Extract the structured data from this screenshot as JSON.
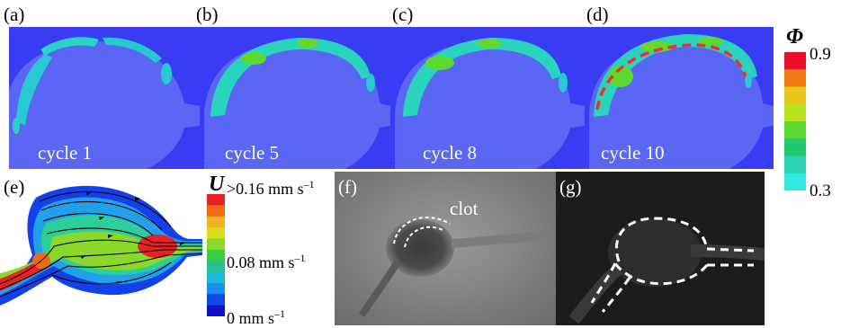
{
  "panels": {
    "a": {
      "label": "(a)",
      "cycle": "cycle 1"
    },
    "b": {
      "label": "(b)",
      "cycle": "cycle 5"
    },
    "c": {
      "label": "(c)",
      "cycle": "cycle 8"
    },
    "d": {
      "label": "(d)",
      "cycle": "cycle 10"
    },
    "e": {
      "label": "(e)"
    },
    "f": {
      "label": "(f)",
      "annotation": "clot"
    },
    "g": {
      "label": "(g)"
    }
  },
  "phi_colorbar": {
    "symbol": "Φ",
    "max": "0.9",
    "min": "0.3",
    "colors": [
      "#e8102a",
      "#f27a16",
      "#e8c51a",
      "#b6e11c",
      "#5cd930",
      "#22c76e",
      "#2bd3b2",
      "#33e8e0"
    ]
  },
  "u_colorbar": {
    "symbol": "U",
    "max_prefix": ">0.16 mm s",
    "max_exp": "–1",
    "mid_prefix": "0.08 mm s",
    "mid_exp": "–1",
    "min_prefix": "0 mm s",
    "min_exp": "–1",
    "colors": [
      "#e82222",
      "#f06a16",
      "#f0b420",
      "#d6e01a",
      "#8bd82a",
      "#3fcc3a",
      "#27c090",
      "#22b8d8",
      "#1a8ef0",
      "#1048e8",
      "#0a12c8"
    ]
  }
}
